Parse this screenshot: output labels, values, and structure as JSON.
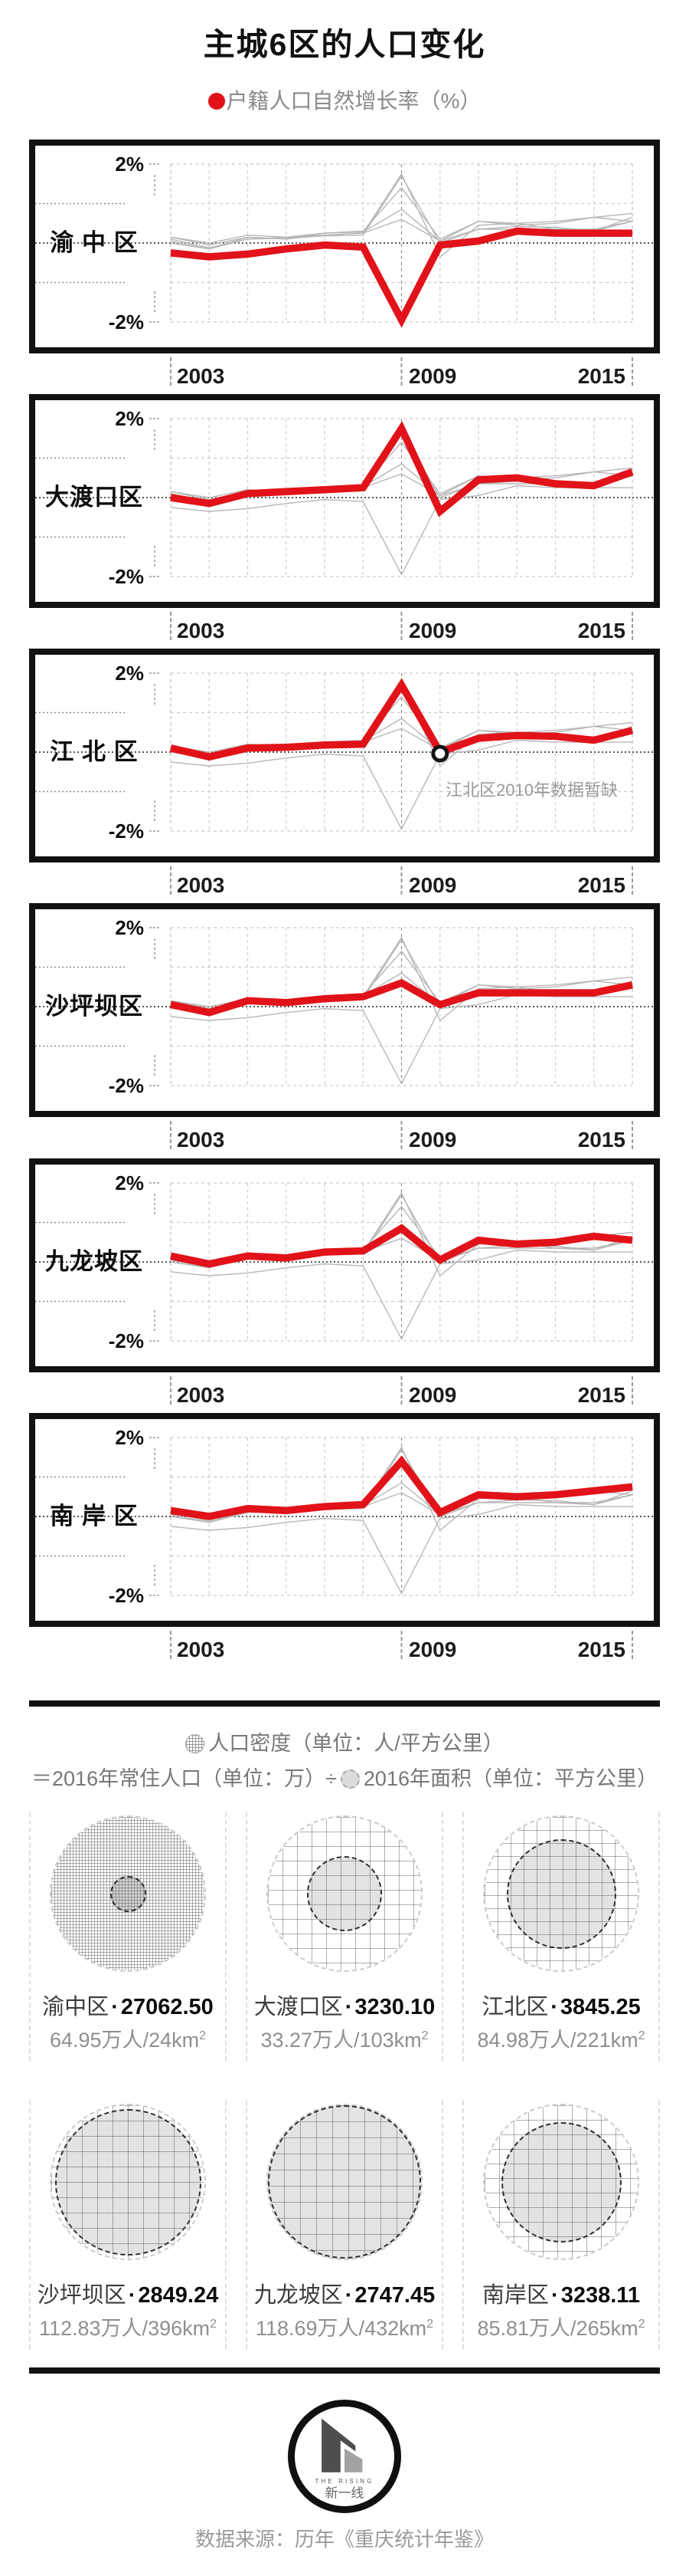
{
  "title": "主城6区的人口变化",
  "legend": {
    "label": "户籍人口自然增长率（%）",
    "dot_color": "#e11219"
  },
  "chart_data": {
    "type": "line",
    "x": [
      2003,
      2004,
      2005,
      2006,
      2007,
      2008,
      2009,
      2010,
      2011,
      2012,
      2013,
      2014,
      2015
    ],
    "x_tick_labels": [
      "2003",
      "2009",
      "2015"
    ],
    "ylim": [
      -2,
      2
    ],
    "y_tick_labels": [
      "2%",
      "-2%"
    ],
    "y_unit": "%",
    "grid": true,
    "layout": "six stacked small multiples, one highlighted district per panel, other districts in gray",
    "highlight_color": "#e11219",
    "other_color": "#b7b7b7",
    "series": [
      {
        "id": "yuzhong",
        "name": "渝中区",
        "label": "渝 中 区",
        "values": [
          -0.25,
          -0.35,
          -0.28,
          -0.15,
          -0.05,
          -0.1,
          -1.95,
          -0.05,
          0.05,
          0.3,
          0.25,
          0.25,
          0.25
        ]
      },
      {
        "id": "dadukou",
        "name": "大渡口区",
        "label": "大渡口区",
        "values": [
          0.0,
          -0.15,
          0.1,
          0.15,
          0.2,
          0.25,
          1.75,
          -0.35,
          0.45,
          0.5,
          0.35,
          0.3,
          0.65
        ]
      },
      {
        "id": "jiangbei",
        "name": "江北区",
        "label": "江 北 区",
        "values": [
          0.1,
          -0.12,
          0.1,
          0.12,
          0.18,
          0.2,
          1.7,
          null,
          0.35,
          0.42,
          0.4,
          0.3,
          0.55
        ],
        "missing_year": 2010,
        "annotation": "江北区2010年数据暂缺"
      },
      {
        "id": "shapingba",
        "name": "沙坪坝区",
        "label": "沙坪坝区",
        "values": [
          0.05,
          -0.15,
          0.15,
          0.1,
          0.2,
          0.25,
          0.6,
          0.05,
          0.35,
          0.35,
          0.35,
          0.35,
          0.55
        ]
      },
      {
        "id": "jiulongpo",
        "name": "九龙坡区",
        "label": "九龙坡区",
        "values": [
          0.15,
          -0.05,
          0.15,
          0.1,
          0.25,
          0.28,
          0.85,
          0.05,
          0.55,
          0.45,
          0.5,
          0.65,
          0.55
        ]
      },
      {
        "id": "nanan",
        "name": "南岸区",
        "label": "南 岸 区",
        "values": [
          0.15,
          0.0,
          0.2,
          0.15,
          0.25,
          0.3,
          1.4,
          0.1,
          0.55,
          0.5,
          0.55,
          0.65,
          0.75
        ]
      }
    ]
  },
  "density": {
    "formula1": "人口密度（单位：人/平方公里）",
    "formula2a": "＝2016年常住人口（单位：万）÷",
    "formula2b": "2016年面积（单位：平方公里）",
    "dot": "·",
    "slash": "/",
    "sup": "2",
    "max_area_km2": 432,
    "items": [
      {
        "name": "渝中区",
        "density": "27062.50",
        "density_value": 27062.5,
        "population": "64.95万人",
        "area": "24km",
        "area_km2": 24
      },
      {
        "name": "大渡口区",
        "density": "3230.10",
        "density_value": 3230.1,
        "population": "33.27万人",
        "area": "103km",
        "area_km2": 103
      },
      {
        "name": "江北区",
        "density": "3845.25",
        "density_value": 3845.25,
        "population": "84.98万人",
        "area": "221km",
        "area_km2": 221
      },
      {
        "name": "沙坪坝区",
        "density": "2849.24",
        "density_value": 2849.24,
        "population": "112.83万人",
        "area": "396km",
        "area_km2": 396
      },
      {
        "name": "九龙坡区",
        "density": "2747.45",
        "density_value": 2747.45,
        "population": "118.69万人",
        "area": "432km",
        "area_km2": 432
      },
      {
        "name": "南岸区",
        "density": "3238.11",
        "density_value": 3238.11,
        "population": "85.81万人",
        "area": "265km",
        "area_km2": 265
      }
    ]
  },
  "footer": {
    "logo_en": "THE RISING",
    "logo_cn": "新一线",
    "source": "数据来源：历年《重庆统计年鉴》"
  }
}
